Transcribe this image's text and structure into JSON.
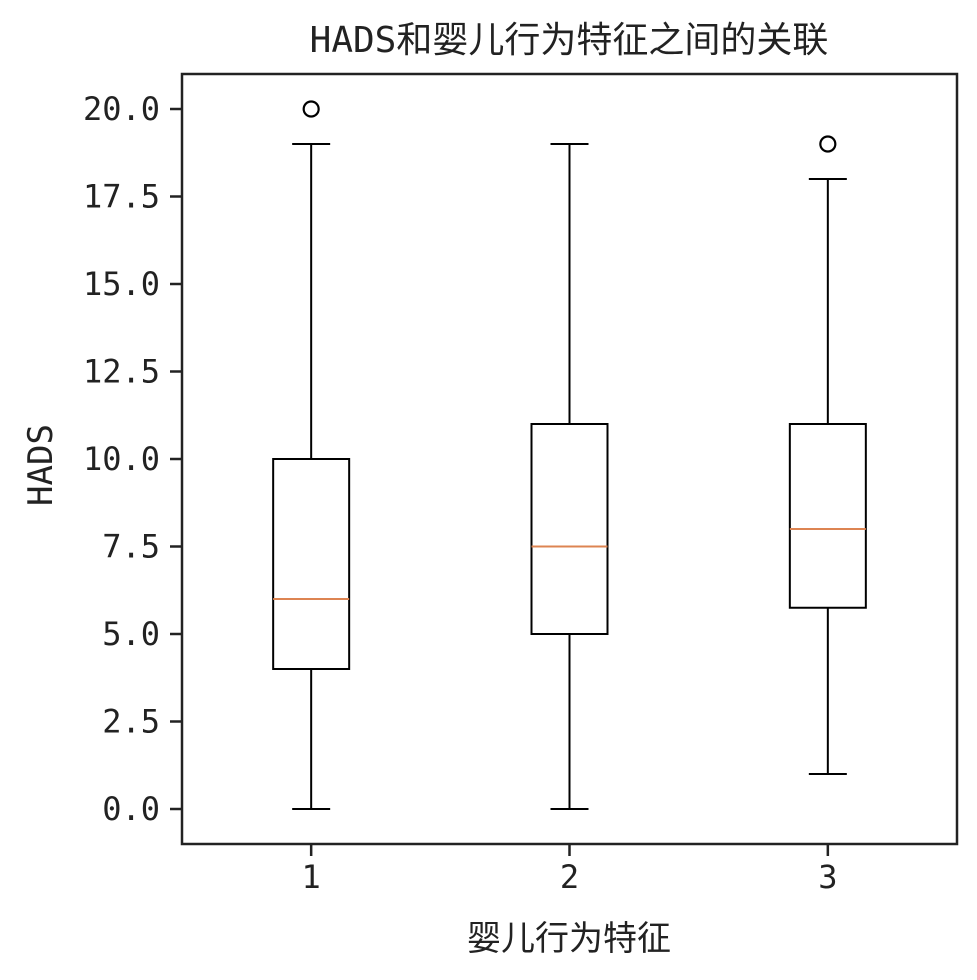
{
  "chart_data": {
    "type": "box",
    "title": "HADS和婴儿行为特征之间的关联",
    "xlabel": "婴儿行为特征",
    "ylabel": "HADS",
    "categories": [
      "1",
      "2",
      "3"
    ],
    "ylim": [
      -1.0,
      21.0
    ],
    "yticks": [
      "0.0",
      "2.5",
      "5.0",
      "7.5",
      "10.0",
      "12.5",
      "15.0",
      "17.5",
      "20.0"
    ],
    "boxes": [
      {
        "category": "1",
        "whisker_low": 0,
        "q1": 4,
        "median": 6,
        "q3": 10,
        "whisker_high": 19,
        "outliers": [
          20
        ]
      },
      {
        "category": "2",
        "whisker_low": 0,
        "q1": 5,
        "median": 7.5,
        "q3": 11,
        "whisker_high": 19,
        "outliers": []
      },
      {
        "category": "3",
        "whisker_low": 1,
        "q1": 5.75,
        "median": 8,
        "q3": 11,
        "whisker_high": 18,
        "outliers": [
          19
        ]
      }
    ],
    "grid": false,
    "colors": {
      "box": "#000000",
      "median": "#dd8452",
      "axes": "#222222"
    }
  }
}
